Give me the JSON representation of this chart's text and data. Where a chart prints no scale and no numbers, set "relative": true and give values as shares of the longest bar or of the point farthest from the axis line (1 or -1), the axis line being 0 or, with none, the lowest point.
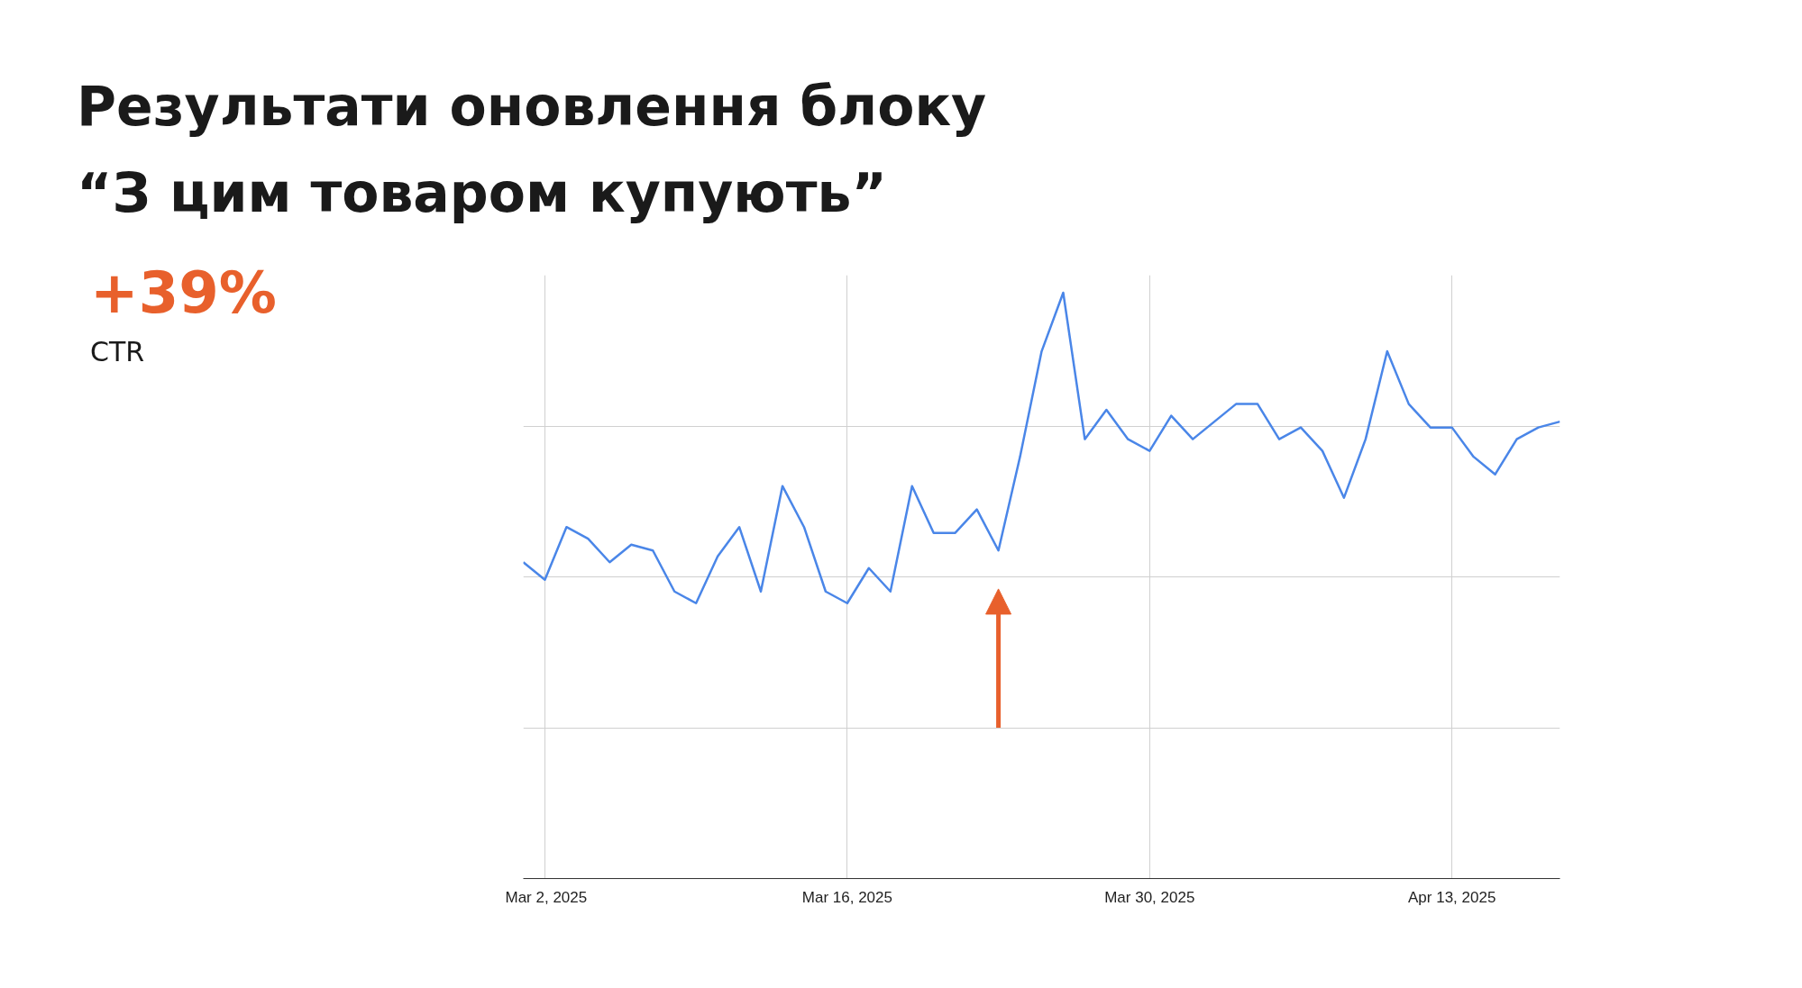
{
  "chart_data": {
    "type": "line",
    "title": "Результати оновлення блоку\n“З цим товаром купують”",
    "annotations": [
      "+39%",
      "CTR"
    ],
    "relative": true,
    "grid": true,
    "tick_labels": "x",
    "marker": "none",
    "line_style": "solid",
    "x": [
      "2025-03-01",
      "2025-03-02",
      "2025-03-03",
      "2025-03-04",
      "2025-03-05",
      "2025-03-06",
      "2025-03-07",
      "2025-03-08",
      "2025-03-09",
      "2025-03-10",
      "2025-03-11",
      "2025-03-12",
      "2025-03-13",
      "2025-03-14",
      "2025-03-15",
      "2025-03-16",
      "2025-03-17",
      "2025-03-18",
      "2025-03-19",
      "2025-03-20",
      "2025-03-21",
      "2025-03-22",
      "2025-03-23",
      "2025-03-24",
      "2025-03-25",
      "2025-03-26",
      "2025-03-27",
      "2025-03-28",
      "2025-03-29",
      "2025-03-30",
      "2025-03-31",
      "2025-04-01",
      "2025-04-02",
      "2025-04-03",
      "2025-04-04",
      "2025-04-05",
      "2025-04-06",
      "2025-04-07",
      "2025-04-08",
      "2025-04-09",
      "2025-04-10",
      "2025-04-11",
      "2025-04-12",
      "2025-04-13",
      "2025-04-14",
      "2025-04-15",
      "2025-04-16",
      "2025-04-17",
      "2025-04-18"
    ],
    "series": [
      {
        "color": "#4a86e8",
        "values": [
          0.54,
          0.51,
          0.6,
          0.58,
          0.54,
          0.57,
          0.56,
          0.49,
          0.47,
          0.55,
          0.6,
          0.49,
          0.67,
          0.6,
          0.49,
          0.47,
          0.53,
          0.49,
          0.67,
          0.59,
          0.59,
          0.63,
          0.56,
          0.72,
          0.9,
          1,
          0.75,
          0.8,
          0.75,
          0.73,
          0.79,
          0.75,
          0.78,
          0.81,
          0.81,
          0.75,
          0.77,
          0.73,
          0.65,
          0.75,
          0.9,
          0.81,
          0.77,
          0.77,
          0.72,
          0.69,
          0.75,
          0.77,
          0.78
        ]
      }
    ],
    "xlim": [
      "2025-03-01",
      "2025-04-18"
    ],
    "xticks": [
      {
        "value": "2025-03-02",
        "label": "Mar 2, 2025"
      },
      {
        "value": "2025-03-16",
        "label": "Mar 16, 2025"
      },
      {
        "value": "2025-03-30",
        "label": "Mar 30, 2025"
      },
      {
        "value": "2025-04-13",
        "label": "Apr 13, 2025"
      }
    ]
  }
}
